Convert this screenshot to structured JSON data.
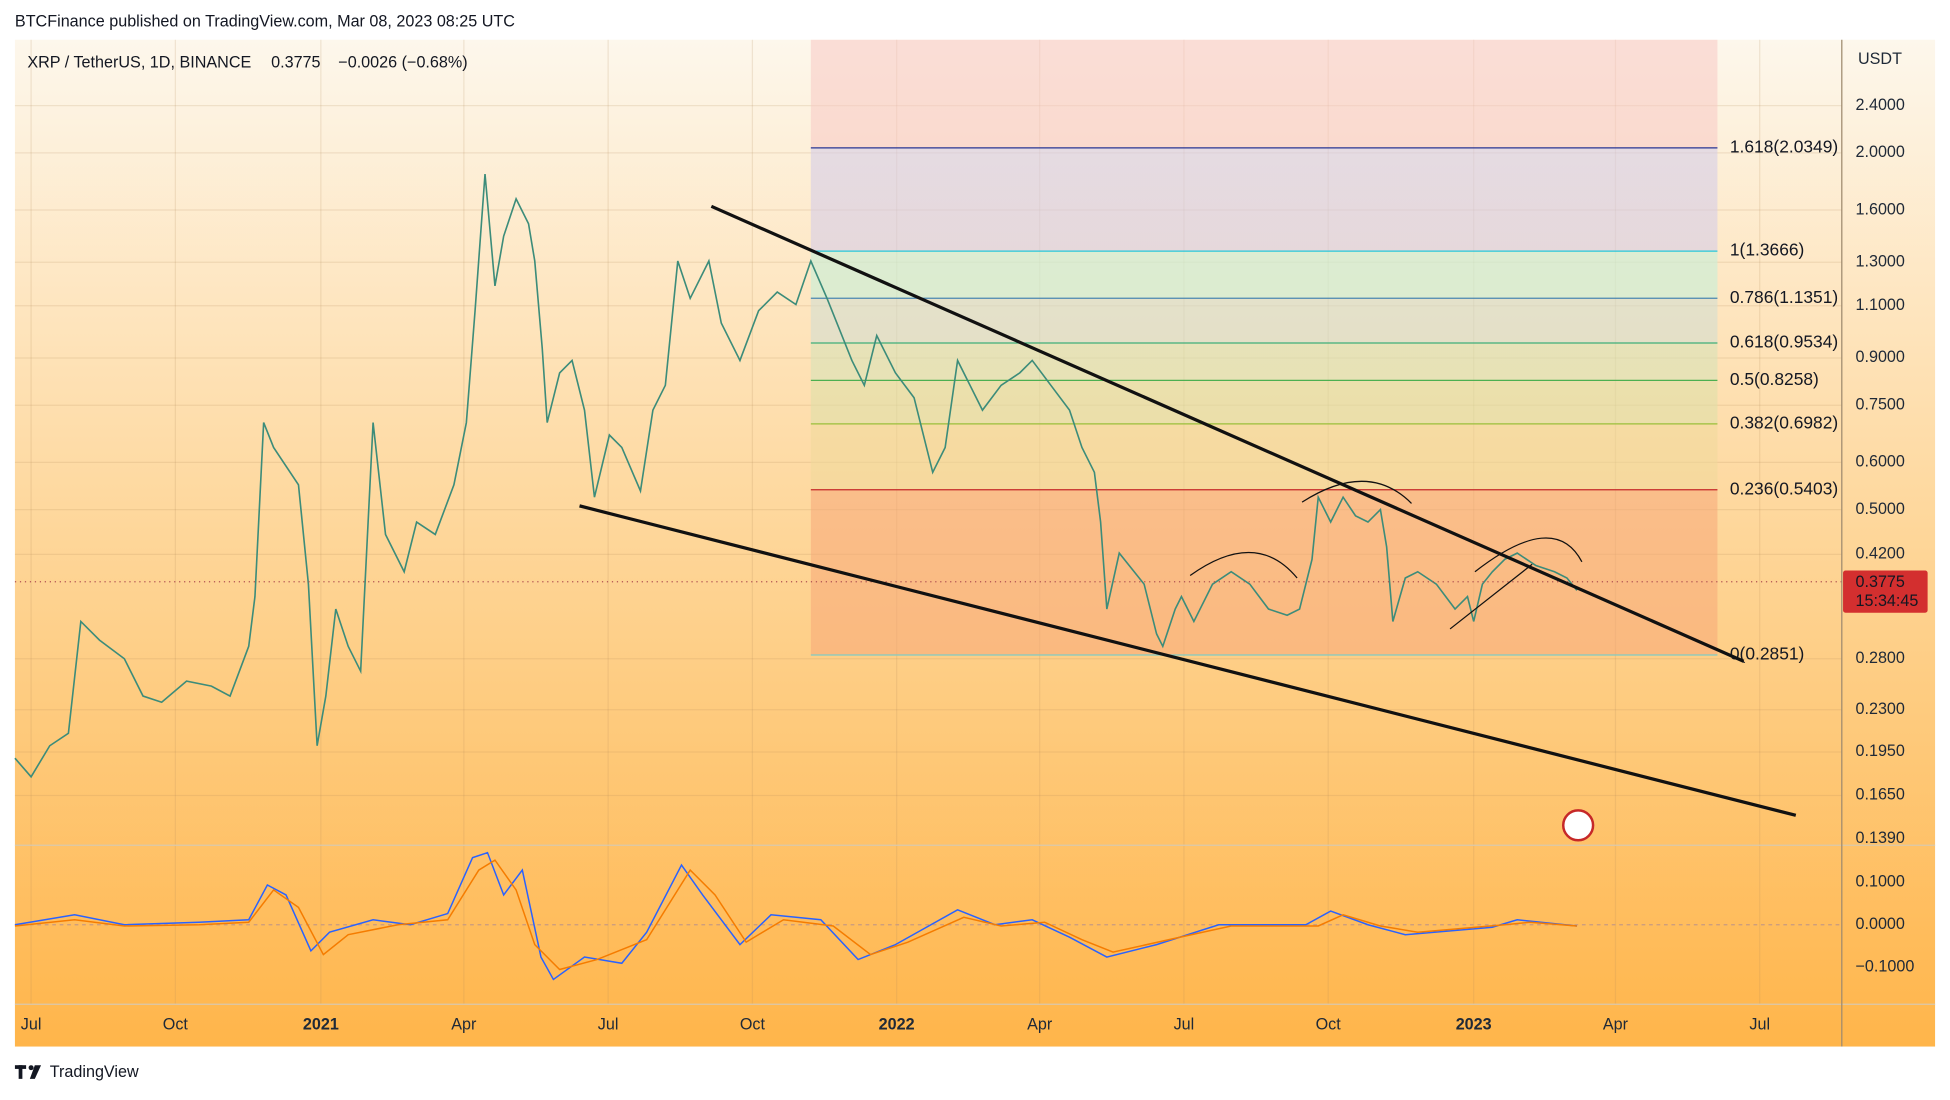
{
  "header": {
    "publisher_line": "BTCFinance published on TradingView.com, Mar 08, 2023 08:25 UTC"
  },
  "symbol": {
    "name": "XRP / TetherUS, 1D, BINANCE",
    "price": "0.3775",
    "change": "−0.0026 (−0.68%)"
  },
  "price_axis": {
    "unit": "USDT",
    "labels": [
      "2.4000",
      "2.0000",
      "1.6000",
      "1.3000",
      "1.1000",
      "0.9000",
      "0.7500",
      "0.6000",
      "0.5000",
      "0.4200",
      "0.2800",
      "0.2300",
      "0.1950",
      "0.1650",
      "0.1390"
    ]
  },
  "price_badge": {
    "price": "0.3775",
    "countdown": "15:34:45"
  },
  "macd_axis": {
    "labels": [
      "0.1000",
      "0.0000",
      "−0.1000"
    ]
  },
  "time_axis": {
    "labels": [
      "Jul",
      "Oct",
      "2021",
      "Apr",
      "Jul",
      "Oct",
      "2022",
      "Apr",
      "Jul",
      "Oct",
      "2023",
      "Apr",
      "Jul"
    ]
  },
  "fib_levels": [
    "1.618(2.0349)",
    "1(1.3666)",
    "0.786(1.1351)",
    "0.618(0.9534)",
    "0.5(0.8258)",
    "0.382(0.6982)",
    "0.236(0.5403)",
    "0(0.2851)"
  ],
  "footer": {
    "brand": "TradingView"
  }
}
